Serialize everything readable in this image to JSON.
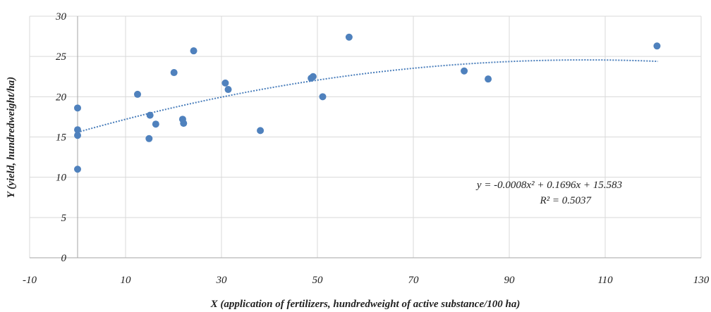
{
  "chart_data": {
    "type": "scatter",
    "xlabel": "X (application of fertilizers, hundredweight of active substance/100 ha)",
    "ylabel": "Y (yield, hundredweight/ha)",
    "xlim": [
      -10,
      130
    ],
    "ylim": [
      0,
      30
    ],
    "x_ticks": [
      "-10",
      "10",
      "30",
      "50",
      "70",
      "90",
      "110",
      "130"
    ],
    "y_ticks": [
      "0",
      "5",
      "10",
      "15",
      "20",
      "25",
      "30"
    ],
    "grid": true,
    "marker_color": "#4f81bd",
    "trendline_color": "#4a7ebb",
    "points": [
      {
        "x": 0,
        "y": 18.6
      },
      {
        "x": 0,
        "y": 15.9
      },
      {
        "x": 0,
        "y": 15.2
      },
      {
        "x": 0,
        "y": 11.0
      },
      {
        "x": 12.5,
        "y": 20.3
      },
      {
        "x": 14.9,
        "y": 14.8
      },
      {
        "x": 15.1,
        "y": 17.7
      },
      {
        "x": 16.3,
        "y": 16.6
      },
      {
        "x": 20.1,
        "y": 23.0
      },
      {
        "x": 21.9,
        "y": 17.2
      },
      {
        "x": 22.1,
        "y": 16.7
      },
      {
        "x": 24.2,
        "y": 25.7
      },
      {
        "x": 30.8,
        "y": 21.7
      },
      {
        "x": 31.4,
        "y": 20.9
      },
      {
        "x": 38.1,
        "y": 15.8
      },
      {
        "x": 48.7,
        "y": 22.3
      },
      {
        "x": 49.1,
        "y": 22.5
      },
      {
        "x": 51.1,
        "y": 20.0
      },
      {
        "x": 56.6,
        "y": 27.4
      },
      {
        "x": 80.6,
        "y": 23.2
      },
      {
        "x": 85.6,
        "y": 22.2
      },
      {
        "x": 120.8,
        "y": 26.3
      }
    ],
    "trendline": {
      "type": "polynomial",
      "a": -0.0008,
      "b": 0.1696,
      "c": 15.583,
      "x_range": [
        0,
        121
      ],
      "equation": "y = -0.0008x² + 0.1696x + 15.583",
      "r_squared": "R² = 0.5037"
    }
  }
}
